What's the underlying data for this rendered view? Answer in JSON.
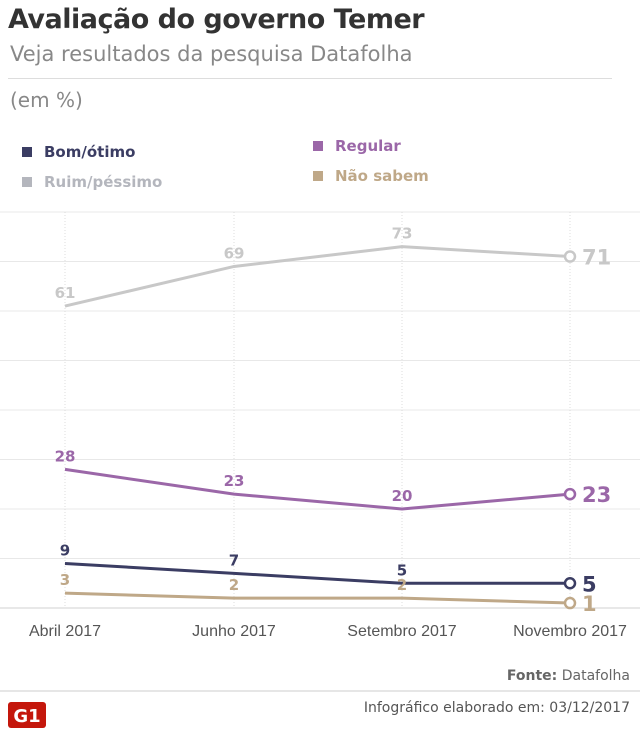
{
  "title": "Avaliação do governo Temer",
  "subtitle": "Veja resultados da pesquisa Datafolha",
  "unit": "(em %)",
  "footer": {
    "source_label": "Fonte:",
    "source": "Datafolha",
    "credit": "Infográfico elaborado em: 03/12/2017",
    "logo": "G1"
  },
  "chart_data": {
    "type": "line",
    "categories": [
      "Abril  2017",
      "Junho  2017",
      "Setembro 2017",
      "Novembro 2017"
    ],
    "ylim": [
      0,
      80
    ],
    "grid": true,
    "legend_placement": "top",
    "series": [
      {
        "name": "Bom/ótimo",
        "color": "#3b3d63",
        "values": [
          9,
          7,
          5,
          5
        ]
      },
      {
        "name": "Ruim/péssimo",
        "color": "#c8c8c8",
        "values": [
          61,
          69,
          73,
          71
        ]
      },
      {
        "name": "Regular",
        "color": "#9b67a8",
        "values": [
          28,
          23,
          20,
          23
        ]
      },
      {
        "name": "Não sabem",
        "color": "#bfa888",
        "values": [
          3,
          2,
          2,
          1
        ]
      }
    ]
  }
}
